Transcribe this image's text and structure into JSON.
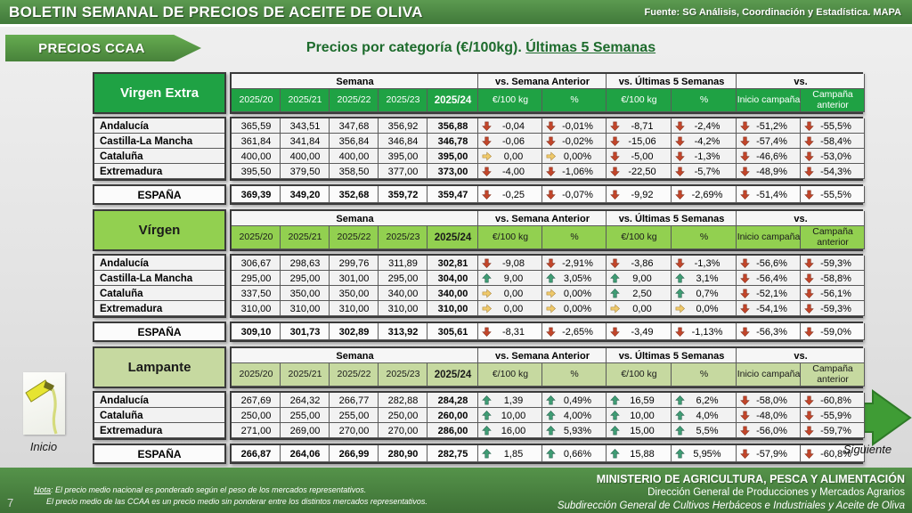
{
  "header": {
    "title": "BOLETIN SEMANAL DE PRECIOS DE ACEITE DE OLIVA",
    "source": "Fuente: SG Análisis, Coordinación y Estadística. MAPA"
  },
  "banner": {
    "label": "PRECIOS CCAA"
  },
  "subtitle": {
    "prefix": "Precios por categoría (€/100kg). ",
    "underline": "Últimas 5 Semanas"
  },
  "table_headers": {
    "semana": "Semana",
    "weeks": [
      "2025/20",
      "2025/21",
      "2025/22",
      "2025/23",
      "2025/24"
    ],
    "vs_semana_anterior": "vs. Semana Anterior",
    "vs_ultimas_5_semanas": "vs. Últimas 5 Semanas",
    "vs": "vs.",
    "eur_100kg": "€/100 kg",
    "pct": "%",
    "inicio_campana": "Inicio campaña",
    "campana_anterior": "Campaña anterior"
  },
  "colors": {
    "bar_green": "#4A8440",
    "banner_green": "#4F9140",
    "table_green_dark": "#1FA244",
    "table_green_mid": "#92D050",
    "table_green_light": "#C6D9A0",
    "arrow_down": "#C2452A",
    "arrow_up": "#3F9C74",
    "arrow_flat": "#EFC96B",
    "title_green": "#1D6B2C"
  },
  "tables": [
    {
      "category": "Virgen Extra",
      "header_bg": "#1FA244",
      "header_text": "#FFFFFF",
      "rows": [
        {
          "region": "Andalucía",
          "weeks": [
            "365,59",
            "343,51",
            "347,68",
            "356,92",
            "356,88"
          ],
          "vs": [
            {
              "dir": "down",
              "text": "-0,04"
            },
            {
              "dir": "down",
              "text": "-0,01%"
            },
            {
              "dir": "down",
              "text": "-8,71"
            },
            {
              "dir": "down",
              "text": "-2,4%"
            },
            {
              "dir": "down",
              "text": "-51,2%"
            },
            {
              "dir": "down",
              "text": "-55,5%"
            }
          ]
        },
        {
          "region": "Castilla-La Mancha",
          "weeks": [
            "361,84",
            "341,84",
            "356,84",
            "346,84",
            "346,78"
          ],
          "vs": [
            {
              "dir": "down",
              "text": "-0,06"
            },
            {
              "dir": "down",
              "text": "-0,02%"
            },
            {
              "dir": "down",
              "text": "-15,06"
            },
            {
              "dir": "down",
              "text": "-4,2%"
            },
            {
              "dir": "down",
              "text": "-57,4%"
            },
            {
              "dir": "down",
              "text": "-58,4%"
            }
          ]
        },
        {
          "region": "Cataluña",
          "weeks": [
            "400,00",
            "400,00",
            "400,00",
            "395,00",
            "395,00"
          ],
          "vs": [
            {
              "dir": "flat",
              "text": "0,00"
            },
            {
              "dir": "flat",
              "text": "0,00%"
            },
            {
              "dir": "down",
              "text": "-5,00"
            },
            {
              "dir": "down",
              "text": "-1,3%"
            },
            {
              "dir": "down",
              "text": "-46,6%"
            },
            {
              "dir": "down",
              "text": "-53,0%"
            }
          ]
        },
        {
          "region": "Extremadura",
          "weeks": [
            "395,50",
            "379,50",
            "358,50",
            "377,00",
            "373,00"
          ],
          "vs": [
            {
              "dir": "down",
              "text": "-4,00"
            },
            {
              "dir": "down",
              "text": "-1,06%"
            },
            {
              "dir": "down",
              "text": "-22,50"
            },
            {
              "dir": "down",
              "text": "-5,7%"
            },
            {
              "dir": "down",
              "text": "-48,9%"
            },
            {
              "dir": "down",
              "text": "-54,3%"
            }
          ]
        }
      ],
      "total": {
        "region": "ESPAÑA",
        "weeks": [
          "369,39",
          "349,20",
          "352,68",
          "359,72",
          "359,47"
        ],
        "vs": [
          {
            "dir": "down",
            "text": "-0,25"
          },
          {
            "dir": "down",
            "text": "-0,07%"
          },
          {
            "dir": "down",
            "text": "-9,92"
          },
          {
            "dir": "down",
            "text": "-2,69%"
          },
          {
            "dir": "down",
            "text": "-51,4%"
          },
          {
            "dir": "down",
            "text": "-55,5%"
          }
        ]
      }
    },
    {
      "category": "Vírgen",
      "header_bg": "#92D050",
      "header_text": "#1A1A1A",
      "rows": [
        {
          "region": "Andalucía",
          "weeks": [
            "306,67",
            "298,63",
            "299,76",
            "311,89",
            "302,81"
          ],
          "vs": [
            {
              "dir": "down",
              "text": "-9,08"
            },
            {
              "dir": "down",
              "text": "-2,91%"
            },
            {
              "dir": "down",
              "text": "-3,86"
            },
            {
              "dir": "down",
              "text": "-1,3%"
            },
            {
              "dir": "down",
              "text": "-56,6%"
            },
            {
              "dir": "down",
              "text": "-59,3%"
            }
          ]
        },
        {
          "region": "Castilla-La Mancha",
          "weeks": [
            "295,00",
            "295,00",
            "301,00",
            "295,00",
            "304,00"
          ],
          "vs": [
            {
              "dir": "up",
              "text": "9,00"
            },
            {
              "dir": "up",
              "text": "3,05%"
            },
            {
              "dir": "up",
              "text": "9,00"
            },
            {
              "dir": "up",
              "text": "3,1%"
            },
            {
              "dir": "down",
              "text": "-56,4%"
            },
            {
              "dir": "down",
              "text": "-58,8%"
            }
          ]
        },
        {
          "region": "Cataluña",
          "weeks": [
            "337,50",
            "350,00",
            "350,00",
            "340,00",
            "340,00"
          ],
          "vs": [
            {
              "dir": "flat",
              "text": "0,00"
            },
            {
              "dir": "flat",
              "text": "0,00%"
            },
            {
              "dir": "up",
              "text": "2,50"
            },
            {
              "dir": "up",
              "text": "0,7%"
            },
            {
              "dir": "down",
              "text": "-52,1%"
            },
            {
              "dir": "down",
              "text": "-56,1%"
            }
          ]
        },
        {
          "region": "Extremadura",
          "weeks": [
            "310,00",
            "310,00",
            "310,00",
            "310,00",
            "310,00"
          ],
          "vs": [
            {
              "dir": "flat",
              "text": "0,00"
            },
            {
              "dir": "flat",
              "text": "0,00%"
            },
            {
              "dir": "flat",
              "text": "0,00"
            },
            {
              "dir": "flat",
              "text": "0,0%"
            },
            {
              "dir": "down",
              "text": "-54,1%"
            },
            {
              "dir": "down",
              "text": "-59,3%"
            }
          ]
        }
      ],
      "total": {
        "region": "ESPAÑA",
        "weeks": [
          "309,10",
          "301,73",
          "302,89",
          "313,92",
          "305,61"
        ],
        "vs": [
          {
            "dir": "down",
            "text": "-8,31"
          },
          {
            "dir": "down",
            "text": "-2,65%"
          },
          {
            "dir": "down",
            "text": "-3,49"
          },
          {
            "dir": "down",
            "text": "-1,13%"
          },
          {
            "dir": "down",
            "text": "-56,3%"
          },
          {
            "dir": "down",
            "text": "-59,0%"
          }
        ]
      }
    },
    {
      "category": "Lampante",
      "header_bg": "#C6D9A0",
      "header_text": "#1A1A1A",
      "rows": [
        {
          "region": "Andalucía",
          "weeks": [
            "267,69",
            "264,32",
            "266,77",
            "282,88",
            "284,28"
          ],
          "vs": [
            {
              "dir": "up",
              "text": "1,39"
            },
            {
              "dir": "up",
              "text": "0,49%"
            },
            {
              "dir": "up",
              "text": "16,59"
            },
            {
              "dir": "up",
              "text": "6,2%"
            },
            {
              "dir": "down",
              "text": "-58,0%"
            },
            {
              "dir": "down",
              "text": "-60,8%"
            }
          ]
        },
        {
          "region": "Cataluña",
          "weeks": [
            "250,00",
            "255,00",
            "255,00",
            "250,00",
            "260,00"
          ],
          "vs": [
            {
              "dir": "up",
              "text": "10,00"
            },
            {
              "dir": "up",
              "text": "4,00%"
            },
            {
              "dir": "up",
              "text": "10,00"
            },
            {
              "dir": "up",
              "text": "4,0%"
            },
            {
              "dir": "down",
              "text": "-48,0%"
            },
            {
              "dir": "down",
              "text": "-55,9%"
            }
          ]
        },
        {
          "region": "Extremadura",
          "weeks": [
            "271,00",
            "269,00",
            "270,00",
            "270,00",
            "286,00"
          ],
          "vs": [
            {
              "dir": "up",
              "text": "16,00"
            },
            {
              "dir": "up",
              "text": "5,93%"
            },
            {
              "dir": "up",
              "text": "15,00"
            },
            {
              "dir": "up",
              "text": "5,5%"
            },
            {
              "dir": "down",
              "text": "-56,0%"
            },
            {
              "dir": "down",
              "text": "-59,7%"
            }
          ]
        }
      ],
      "total": {
        "region": "ESPAÑA",
        "weeks": [
          "266,87",
          "264,06",
          "266,99",
          "280,90",
          "282,75"
        ],
        "vs": [
          {
            "dir": "up",
            "text": "1,85"
          },
          {
            "dir": "up",
            "text": "0,66%"
          },
          {
            "dir": "up",
            "text": "15,88"
          },
          {
            "dir": "up",
            "text": "5,95%"
          },
          {
            "dir": "down",
            "text": "-57,9%"
          },
          {
            "dir": "down",
            "text": "-60,8%"
          }
        ]
      }
    }
  ],
  "nav": {
    "inicio": "Inicio",
    "siguiente": "Siguiente"
  },
  "footer": {
    "page_number": "7",
    "note_label": "Nota",
    "note_rest": ": El precio medio nacional es ponderado según el peso de los mercados representativos.",
    "note_line2": "El precio medio de las CCAA es un precio medio sin ponderar entre los distintos mercados representativos.",
    "ministry": "MINISTERIO DE AGRICULTURA, PESCA Y ALIMENTACIÓN",
    "direction": "Dirección General de Producciones y Mercados Agrarios",
    "subdirection": "Subdirección General de Cultivos Herbáceos e Industriales y Aceite de Oliva"
  }
}
